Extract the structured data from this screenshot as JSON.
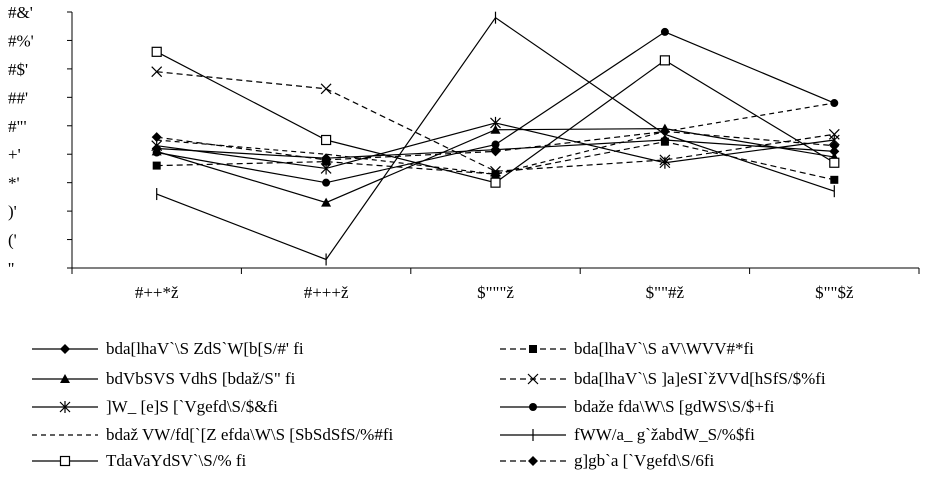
{
  "chart_data": {
    "type": "line",
    "categories": [
      "#++*ž",
      "#+++ž",
      "$\"\"\"ž",
      "$\"\"#ž",
      "$\"\"$ž"
    ],
    "ytick_labels": [
      "''",
      "('",
      ")'",
      "*'",
      "+'",
      "#\"'",
      "##'",
      "#$'",
      "#%'",
      "#&'"
    ],
    "ylim": [
      0,
      45
    ],
    "grid": false,
    "legend_position": "bottom",
    "series": [
      {
        "name": "bda[lhaV`\\S ZdS`W[b[S/#' fi",
        "values": [
          21,
          19.3,
          20.8,
          22.5,
          20.5
        ],
        "color": "#000000",
        "dash": "",
        "marker": "diamond-filled"
      },
      {
        "name": "bda[lhaV`\\S aV\\WVV#*fi",
        "values": [
          18,
          18.7,
          16.5,
          22.2,
          15.5
        ],
        "color": "#000000",
        "dash": "6,4",
        "marker": "square-filled"
      },
      {
        "name": "bdVbSVS VdhS [bdaž/S\" fi",
        "values": [
          20.5,
          11.5,
          24.3,
          24.5,
          19.5
        ],
        "color": "#000000",
        "dash": "",
        "marker": "triangle-filled"
      },
      {
        "name": "bda[lhaV`\\S ]a]eSI`žVVd[hSfS/$%fi",
        "values": [
          34.5,
          31.5,
          17,
          19,
          23.5
        ],
        "color": "#000000",
        "dash": "6,4",
        "marker": "x"
      },
      {
        "name": "]W_ [e]S [`Vgefd\\S/$&fi",
        "values": [
          21.5,
          17.5,
          25.5,
          18.5,
          22.5
        ],
        "color": "#000000",
        "dash": "",
        "marker": "star"
      },
      {
        "name": "bdaže fda\\W\\S [gdWS\\S/$+fi",
        "values": [
          20.3,
          15,
          21.7,
          41.5,
          29
        ],
        "color": "#000000",
        "dash": "",
        "marker": "circle-filled"
      },
      {
        "name": "bdaž VW/fd[`[Z efda\\W\\S [SbSdSfS/%#fi",
        "values": [
          22.5,
          20,
          16.5,
          24,
          29
        ],
        "color": "#000000",
        "dash": "5,4",
        "marker": "none"
      },
      {
        "name": "fWW/a_ g`žabdW_S/%$fi",
        "values": [
          13,
          1.5,
          44,
          23.5,
          13.5
        ],
        "color": "#000000",
        "dash": "",
        "marker": "plus"
      },
      {
        "name": "TdaVaYdSV`\\S/% fi",
        "values": [
          38,
          22.5,
          15,
          36.5,
          18.5
        ],
        "color": "#000000",
        "dash": "",
        "marker": "square-open"
      },
      {
        "name": "g]gb`a [`Vgefd\\S/6fi",
        "values": [
          23,
          19,
          20.5,
          24,
          21.5
        ],
        "color": "#000000",
        "dash": "6,4",
        "marker": "diamond-filled"
      }
    ]
  },
  "legend_order": [
    0,
    1,
    2,
    3,
    4,
    5,
    6,
    7,
    8,
    9
  ]
}
